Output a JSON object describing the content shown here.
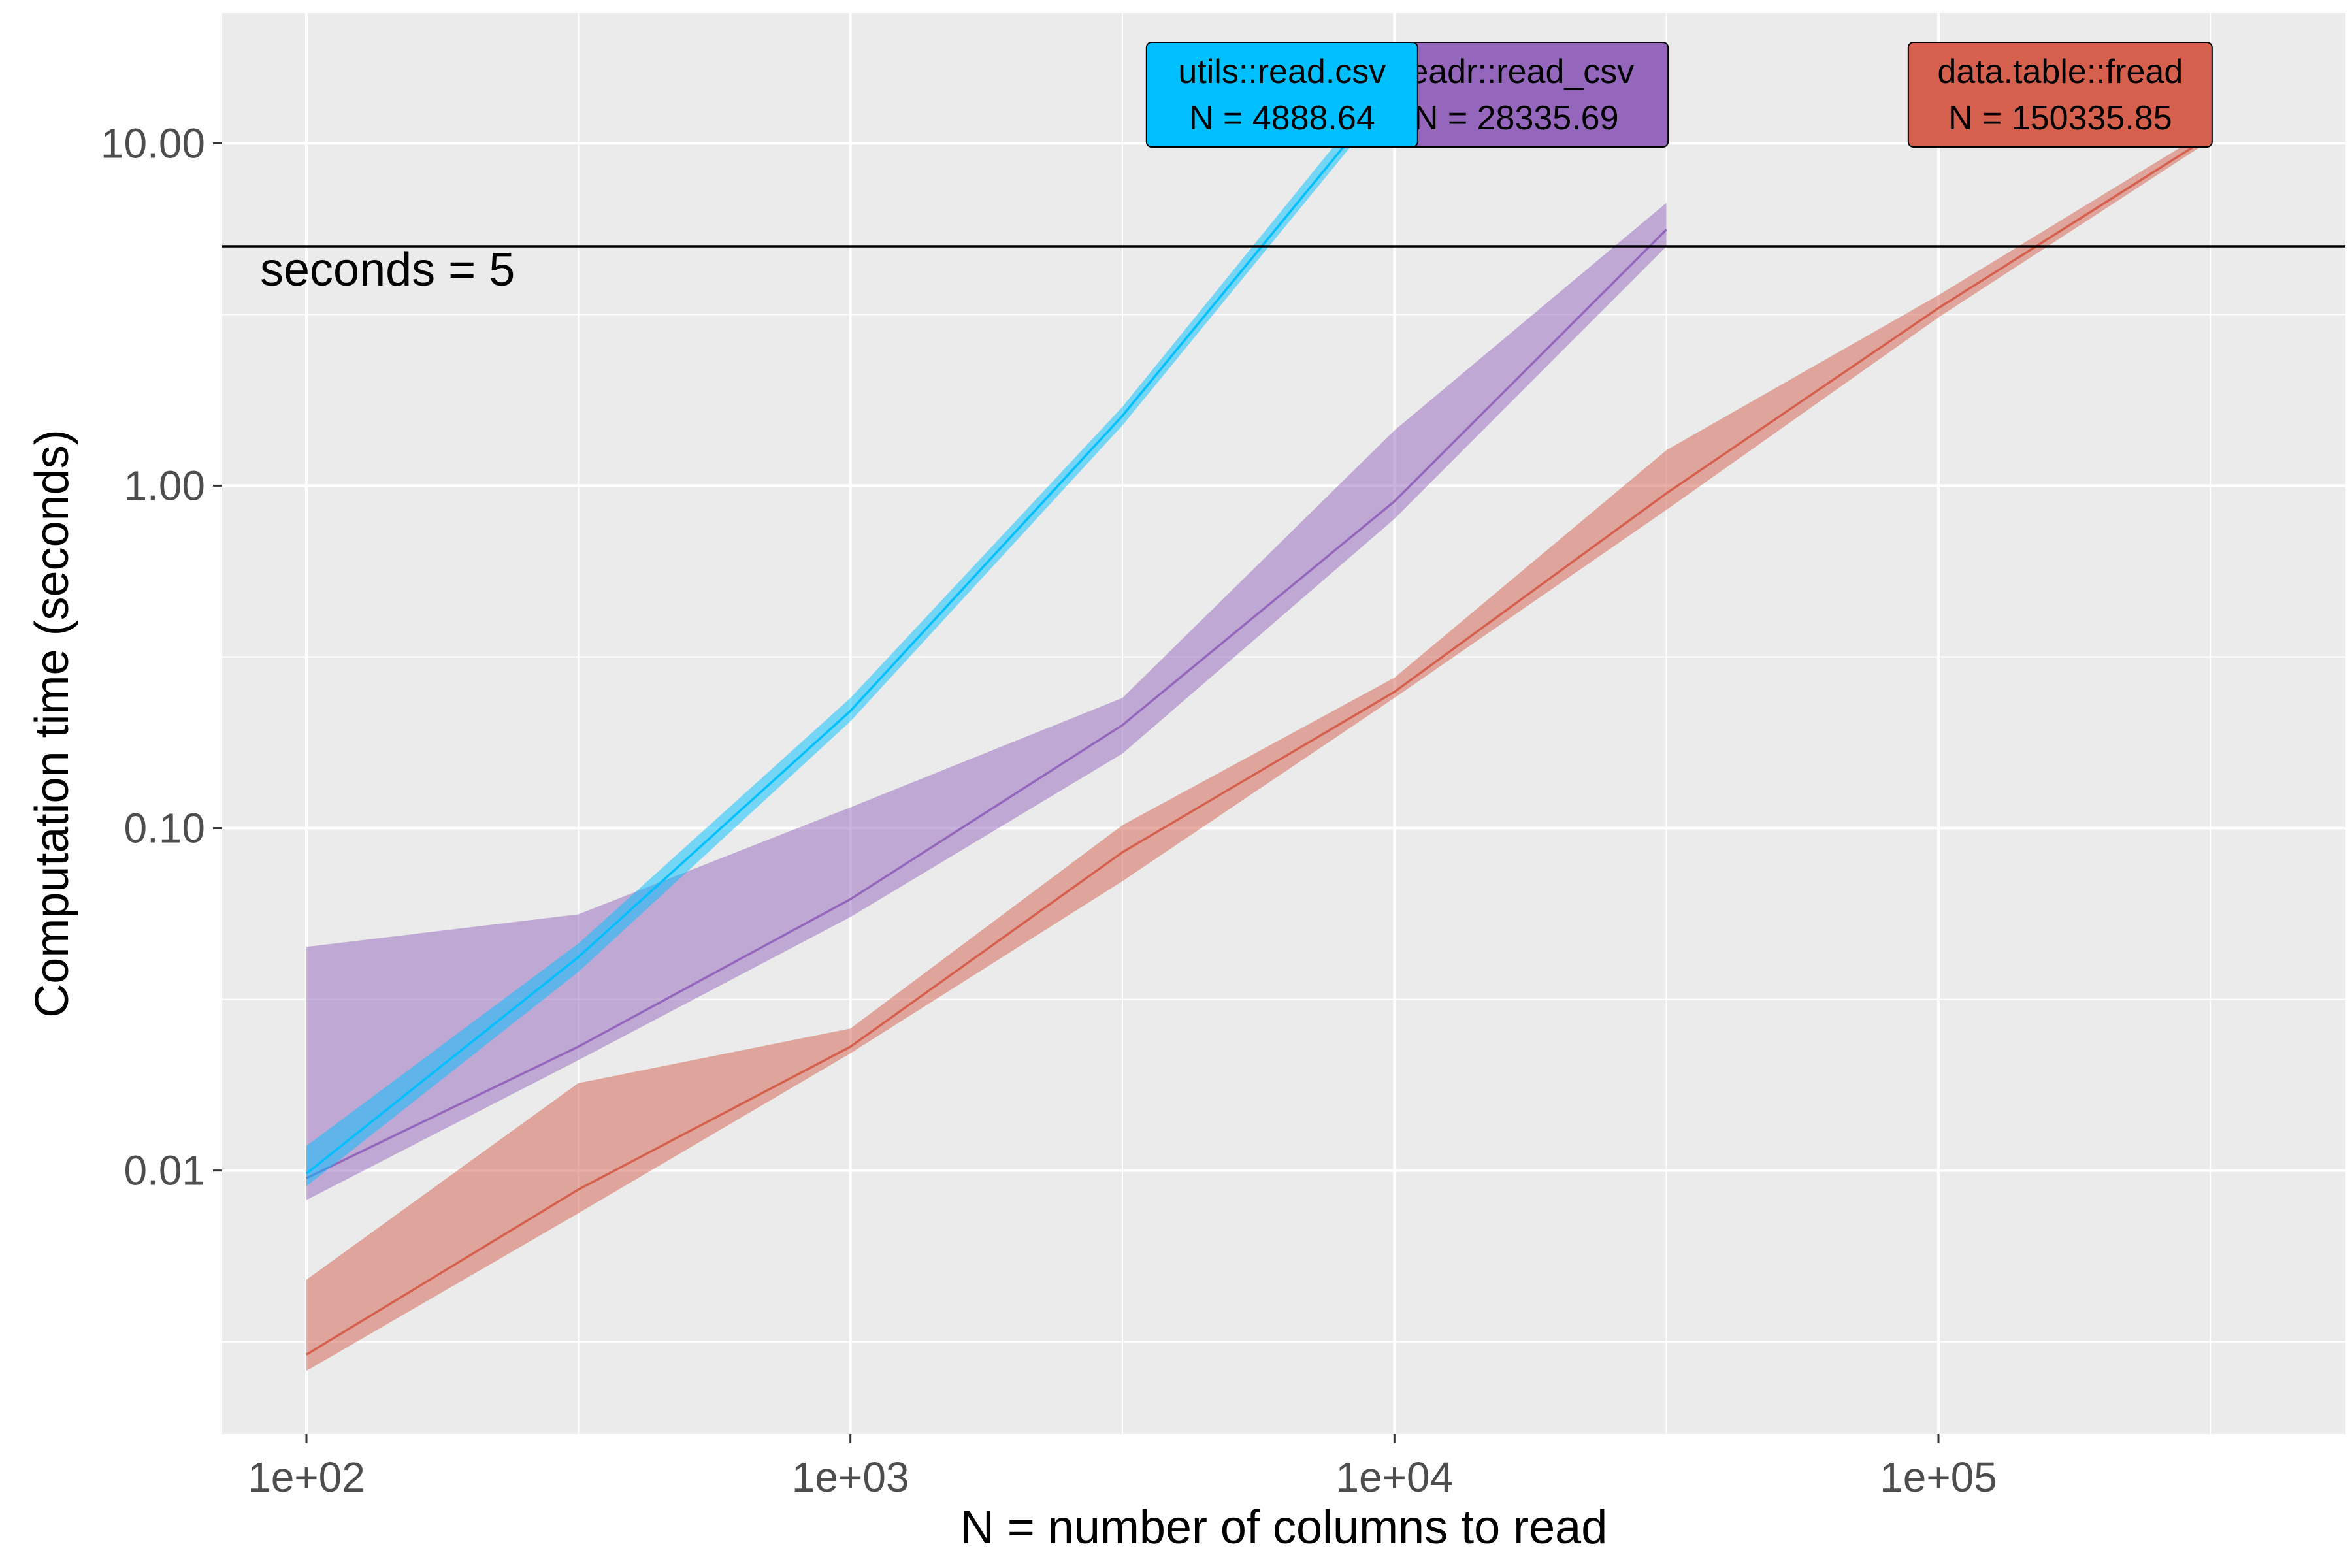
{
  "chart_data": {
    "type": "line",
    "title": "",
    "xlabel": "N = number of columns to read",
    "ylabel": "Computation time (seconds)",
    "x_scale": "log10",
    "y_scale": "log10",
    "xlim": [
      70,
      560000
    ],
    "ylim": [
      0.0017,
      24
    ],
    "grid": true,
    "legend": "none",
    "x_ticks": [
      {
        "value": 100,
        "label": "1e+02"
      },
      {
        "value": 1000,
        "label": "1e+03"
      },
      {
        "value": 10000,
        "label": "1e+04"
      },
      {
        "value": 100000,
        "label": "1e+05"
      }
    ],
    "y_ticks": [
      {
        "value": 0.01,
        "label": "0.01"
      },
      {
        "value": 0.1,
        "label": "0.10"
      },
      {
        "value": 1,
        "label": "1.00"
      },
      {
        "value": 10,
        "label": "10.00"
      }
    ],
    "hline": {
      "value": 5,
      "label": "seconds = 5"
    },
    "series": [
      {
        "name": "readr::read_csv",
        "label_line1": "readr::read_csv",
        "label_line2": "N = 28335.69",
        "color": "#9467bd",
        "x": [
          100,
          316,
          1000,
          3162,
          10000,
          31623
        ],
        "median": [
          0.0095,
          0.023,
          0.062,
          0.2,
          0.9,
          5.6
        ],
        "lower": [
          0.0082,
          0.021,
          0.055,
          0.165,
          0.8,
          5.0
        ],
        "upper": [
          0.045,
          0.056,
          0.115,
          0.24,
          1.45,
          6.7
        ]
      },
      {
        "name": "data.table::fread",
        "label_line1": "data.table::fread",
        "label_line2": "N = 150335.85",
        "color": "#d4604d",
        "x": [
          100,
          316,
          1000,
          3162,
          10000,
          31623,
          100000,
          316228
        ],
        "median": [
          0.0029,
          0.0088,
          0.023,
          0.085,
          0.25,
          0.95,
          3.3,
          10.5
        ],
        "lower": [
          0.0026,
          0.0075,
          0.022,
          0.07,
          0.24,
          0.85,
          3.1,
          10.2
        ],
        "upper": [
          0.0048,
          0.018,
          0.026,
          0.102,
          0.275,
          1.27,
          3.6,
          11.0
        ]
      },
      {
        "name": "utils::read.csv",
        "label_line1": "utils::read.csv",
        "label_line2": "N = 4888.64",
        "color": "#00bfff",
        "x": [
          100,
          316,
          1000,
          3162,
          10000
        ],
        "median": [
          0.0098,
          0.042,
          0.22,
          1.6,
          14.8
        ],
        "lower": [
          0.009,
          0.038,
          0.205,
          1.5,
          14.0
        ],
        "upper": [
          0.0118,
          0.046,
          0.24,
          1.7,
          16.2
        ]
      }
    ]
  }
}
